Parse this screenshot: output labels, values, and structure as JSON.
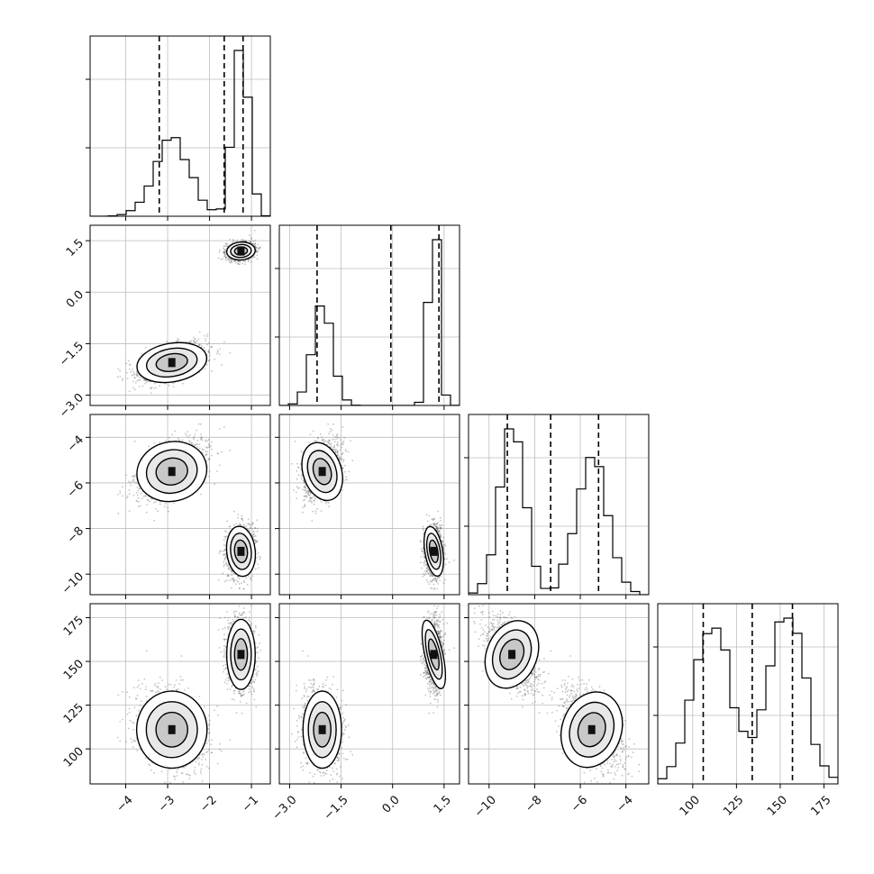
{
  "figure": {
    "type": "corner-plot",
    "params": [
      {
        "ticks": [
          -4,
          -3,
          -2,
          -1
        ],
        "range": [
          -4.85,
          -0.55
        ]
      },
      {
        "ticks": [
          -3.0,
          -1.5,
          0.0,
          1.5
        ],
        "range": [
          -3.3,
          1.95
        ]
      },
      {
        "ticks": [
          -10,
          -8,
          -6,
          -4
        ],
        "range": [
          -10.9,
          -3.0
        ]
      },
      {
        "ticks": [
          100,
          125,
          150,
          175
        ],
        "range": [
          80,
          183
        ]
      }
    ],
    "tick_labels": [
      [
        "−4",
        "−3",
        "−2",
        "−1"
      ],
      [
        "−3.0",
        "−1.5",
        "0.0",
        "1.5"
      ],
      [
        "−10",
        "−8",
        "−6",
        "−4"
      ],
      [
        "100",
        "125",
        "150",
        "175"
      ]
    ],
    "quantiles": [
      [
        -3.2,
        -1.65,
        -1.2
      ],
      [
        -2.2,
        -0.05,
        1.35
      ],
      [
        -9.2,
        -7.3,
        -5.2
      ],
      [
        106,
        134,
        157
      ]
    ],
    "modes": [
      {
        "weight": 0.5,
        "mean": [
          -2.9,
          -2.05,
          -5.5,
          111
        ],
        "sd": [
          0.42,
          0.28,
          0.65,
          11
        ]
      },
      {
        "weight": 0.5,
        "mean": [
          -1.25,
          1.2,
          -9.0,
          154
        ],
        "sd": [
          0.17,
          0.13,
          0.55,
          10
        ]
      }
    ],
    "grid": true,
    "legend": "none"
  },
  "chart_data": {
    "type": "scatter",
    "title": "",
    "series": [
      {
        "name": "",
        "x": [
          -2.9,
          -1.25
        ],
        "y": [
          -2.05,
          1.2
        ]
      },
      {
        "name": "",
        "x": [
          -2.9,
          -1.25
        ],
        "y": [
          -5.5,
          -9.0
        ]
      },
      {
        "name": "",
        "x": [
          -2.9,
          -1.25
        ],
        "y": [
          111,
          154
        ]
      },
      {
        "name": "",
        "x": [
          -2.05,
          1.2
        ],
        "y": [
          -5.5,
          -9.0
        ]
      },
      {
        "name": "",
        "x": [
          -2.05,
          1.2
        ],
        "y": [
          111,
          154
        ]
      },
      {
        "name": "",
        "x": [
          -5.5,
          -9.0
        ],
        "y": [
          111,
          154
        ]
      }
    ],
    "quantiles": [
      [
        -3.2,
        -1.65,
        -1.2
      ],
      [
        -2.2,
        -0.05,
        1.35
      ],
      [
        -9.2,
        -7.3,
        -5.2
      ],
      [
        106,
        134,
        157
      ]
    ],
    "grid": true
  }
}
